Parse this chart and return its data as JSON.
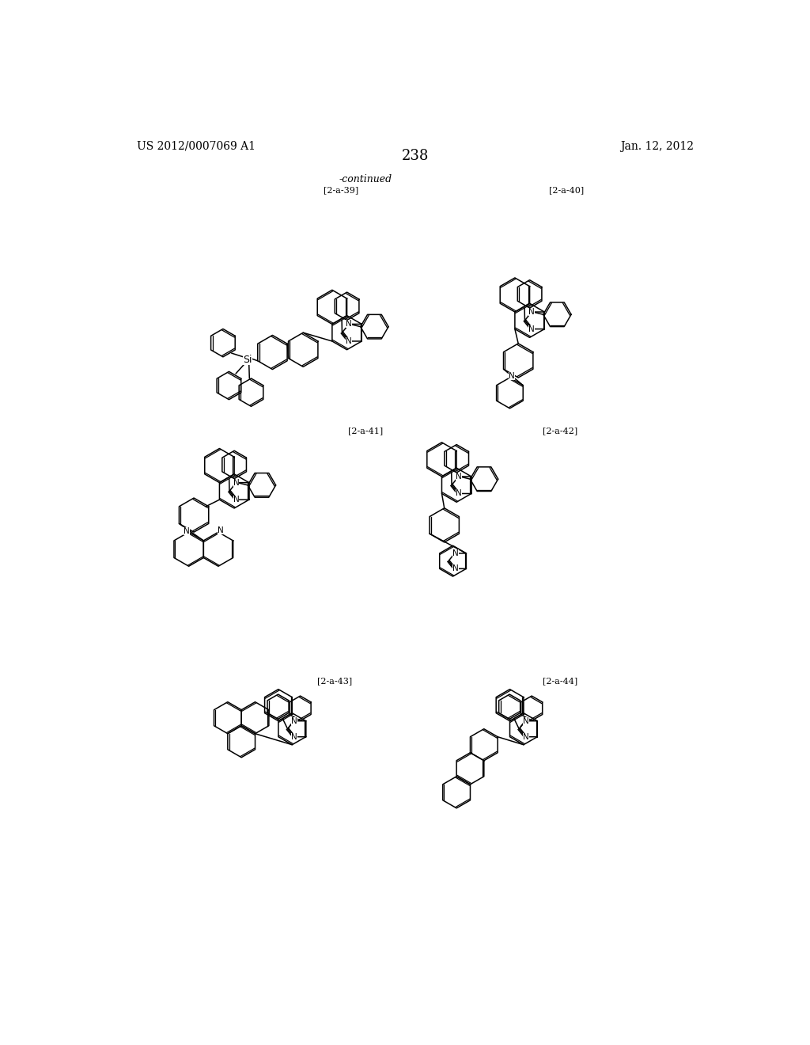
{
  "page_num": "238",
  "left_header": "US 2012/0007069 A1",
  "right_header": "Jan. 12, 2012",
  "continued_label": "-continued",
  "labels": [
    "[2-a-39]",
    "[2-a-40]",
    "[2-a-41]",
    "[2-a-42]",
    "[2-a-43]",
    "[2-a-44]"
  ],
  "background_color": "#ffffff",
  "line_color": "#000000",
  "font_size_header": 10,
  "font_size_label": 8,
  "font_size_page": 13,
  "font_size_atom": 7.5
}
